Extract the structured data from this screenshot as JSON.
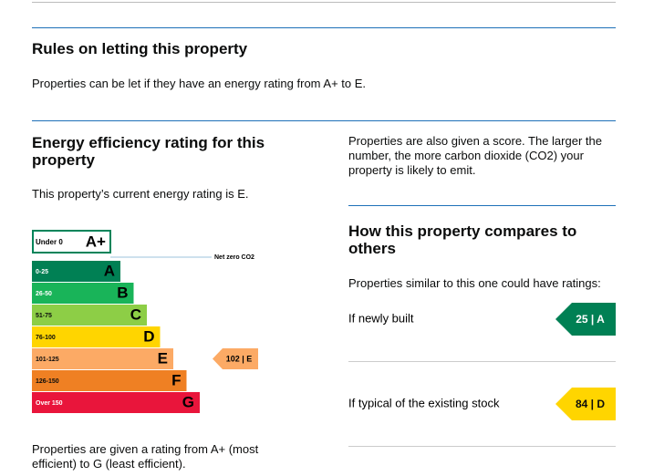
{
  "rules": {
    "heading": "Rules on letting this property",
    "text": "Properties can be let if they have an energy rating from A+ to E."
  },
  "rating": {
    "heading": "Energy efficiency rating for this property",
    "current_text": "This property’s current energy rating is E.",
    "chart": {
      "top_band": {
        "range": "Under 0",
        "letter": "A+",
        "color": "#00845a"
      },
      "net_zero": "Net zero CO2",
      "bands": [
        {
          "range": "0-25",
          "letter": "A",
          "color": "#008054"
        },
        {
          "range": "26-50",
          "letter": "B",
          "color": "#19b459"
        },
        {
          "range": "51-75",
          "letter": "C",
          "color": "#8dce46"
        },
        {
          "range": "76-100",
          "letter": "D",
          "color": "#ffd500"
        },
        {
          "range": "101-125",
          "letter": "E",
          "color": "#fcaa65"
        },
        {
          "range": "126-150",
          "letter": "F",
          "color": "#ef8023"
        },
        {
          "range": "Over 150",
          "letter": "G",
          "color": "#e9153b"
        }
      ],
      "current": {
        "label": "102 | E",
        "color": "#fcaa65"
      }
    },
    "footnote": "Properties are given a rating from A+ (most efficient) to G (least efficient)."
  },
  "score_text": "Properties are also given a score. The larger the number, the more carbon dioxide (CO2) your property is likely to emit.",
  "compare": {
    "heading": "How this property compares to others",
    "intro": "Properties similar to this one could have ratings:",
    "items": [
      {
        "label": "If newly built",
        "rating": "25 | A",
        "color": "#008054",
        "text_color": "#ffffff"
      },
      {
        "label": "If typical of the existing stock",
        "rating": "84 | D",
        "color": "#ffd500",
        "text_color": "#0b0c0c"
      }
    ]
  }
}
